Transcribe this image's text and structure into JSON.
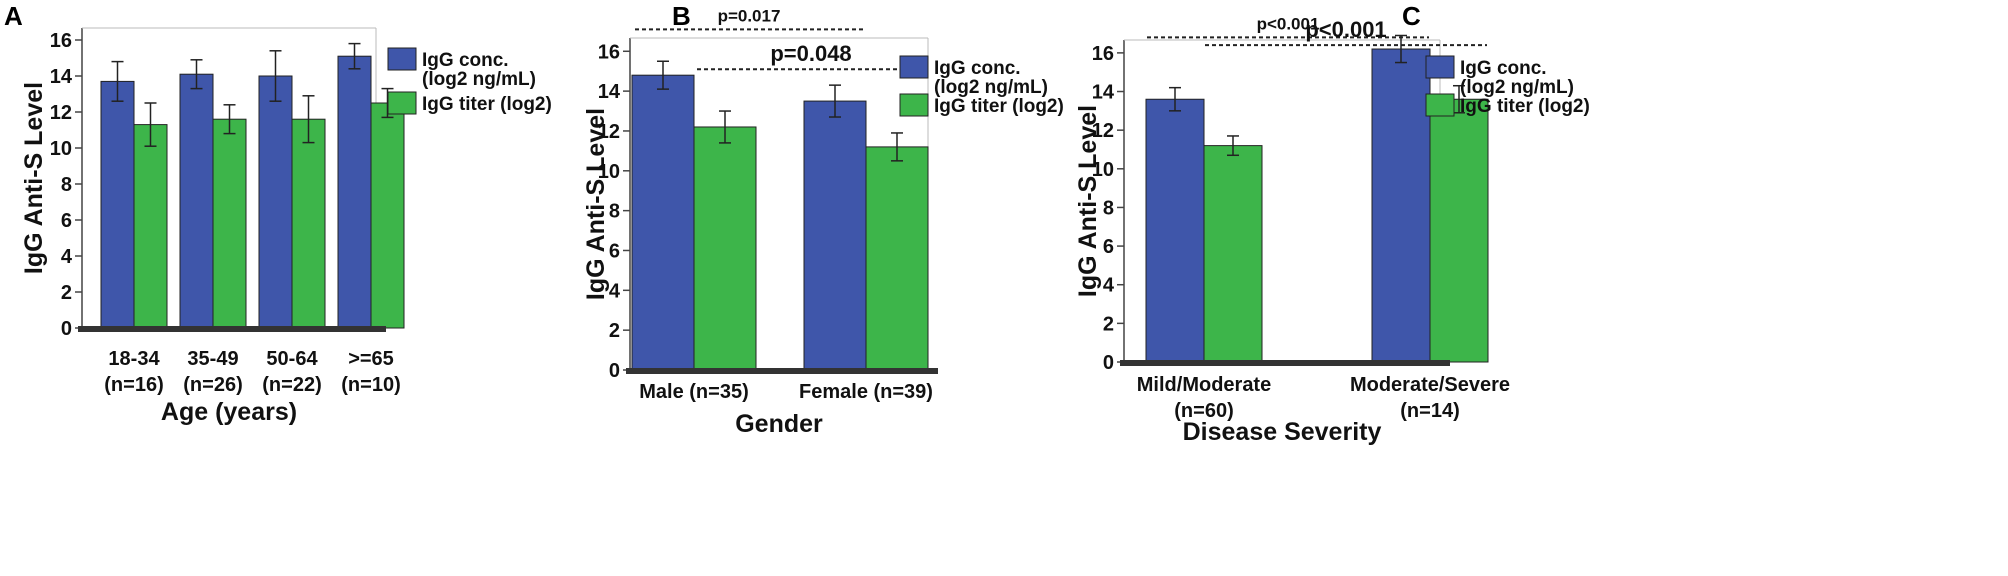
{
  "colors": {
    "igg_conc": "#3F56AA",
    "igg_titer": "#3DB54A",
    "baseline": "#333333"
  },
  "chart_data": [
    {
      "panel": "A",
      "type": "bar",
      "ylabel": "IgG Anti-S Level",
      "xlabel": "Age (years)",
      "ylim": [
        0,
        16
      ],
      "yticks": [
        0,
        2,
        4,
        6,
        8,
        10,
        12,
        14,
        16
      ],
      "categories": [
        [
          "18-34",
          "(n=16)"
        ],
        [
          "35-49",
          "(n=26)"
        ],
        [
          "50-64",
          "(n=22)"
        ],
        [
          ">=65",
          "(n=10)"
        ]
      ],
      "series": [
        {
          "name": [
            "IgG conc.",
            "(log2 ng/mL)"
          ],
          "color": "#3F56AA",
          "values": [
            13.7,
            14.1,
            14.0,
            15.1
          ],
          "errors": [
            1.1,
            0.8,
            1.4,
            0.7
          ]
        },
        {
          "name": [
            "IgG titer (log2)"
          ],
          "color": "#3DB54A",
          "values": [
            11.3,
            11.6,
            11.6,
            12.5
          ],
          "errors": [
            1.2,
            0.8,
            1.3,
            0.8
          ]
        }
      ],
      "annotations": []
    },
    {
      "panel": "B",
      "type": "bar",
      "ylabel": "IgG Anti-S Level",
      "xlabel": "Gender",
      "ylim": [
        0,
        16
      ],
      "yticks": [
        0,
        2,
        4,
        6,
        8,
        10,
        12,
        14,
        16
      ],
      "categories": [
        [
          "Male (n=35)"
        ],
        [
          "Female (n=39)"
        ]
      ],
      "series": [
        {
          "name": [
            "IgG conc.",
            "(log2 ng/mL)"
          ],
          "color": "#3F56AA",
          "values": [
            14.8,
            13.5
          ],
          "errors": [
            0.7,
            0.8
          ]
        },
        {
          "name": [
            "IgG titer (log2)"
          ],
          "color": "#3DB54A",
          "values": [
            12.2,
            11.2
          ],
          "errors": [
            0.8,
            0.7
          ]
        }
      ],
      "annotations": [
        {
          "text": "p=0.017",
          "from": [
            0,
            0
          ],
          "to": [
            1,
            0
          ],
          "y": 17.1,
          "size": "small"
        },
        {
          "text": "p=0.048",
          "from": [
            0,
            1
          ],
          "to": [
            1,
            1
          ],
          "y": 15.1,
          "size": "large"
        }
      ]
    },
    {
      "panel": "C",
      "type": "bar",
      "ylabel": "IgG Anti-S Level",
      "xlabel": "Disease Severity",
      "ylim": [
        0,
        16
      ],
      "yticks": [
        0,
        2,
        4,
        6,
        8,
        10,
        12,
        14,
        16
      ],
      "categories": [
        [
          "Mild/Moderate",
          "(n=60)"
        ],
        [
          "Moderate/Severe",
          "(n=14)"
        ]
      ],
      "series": [
        {
          "name": [
            "IgG conc.",
            "(log2 ng/mL)"
          ],
          "color": "#3F56AA",
          "values": [
            13.6,
            16.2
          ],
          "errors": [
            0.6,
            0.7
          ]
        },
        {
          "name": [
            "IgG titer (log2)"
          ],
          "color": "#3DB54A",
          "values": [
            11.2,
            13.6
          ],
          "errors": [
            0.5,
            0.7
          ]
        }
      ],
      "annotations": [
        {
          "text": "p<0.001",
          "from": [
            0,
            0
          ],
          "to": [
            1,
            0
          ],
          "y": 16.8,
          "size": "small"
        },
        {
          "text": "p<0.001",
          "from": [
            0,
            1
          ],
          "to": [
            1,
            1
          ],
          "y": 16.4,
          "size": "large"
        }
      ]
    }
  ]
}
